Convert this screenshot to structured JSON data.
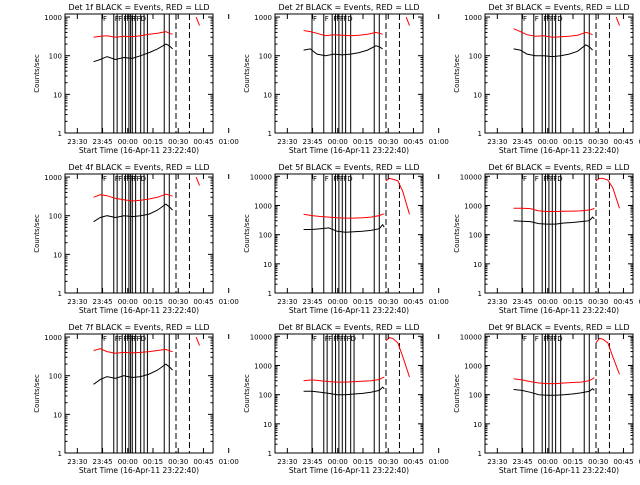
{
  "figure": {
    "background": "#ffffff",
    "event_color": "#000000",
    "lld_color": "#ff0000"
  },
  "chart_data": [
    {
      "type": "line",
      "title": "Det 1f BLACK = Events, RED = LLD",
      "xlabel": "Start Time (16-Apr-11 23:22:40)",
      "ylabel": "Counts/sec",
      "xticks": [
        "23:30",
        "23:45",
        "00:00",
        "00:15",
        "00:30",
        "00:45",
        "01:00"
      ],
      "yticks": [
        "1",
        "10",
        "100",
        "1000"
      ],
      "ylim": [
        1,
        1200
      ],
      "yscale": "log",
      "grid": false,
      "x_minutes": [
        17,
        21,
        25,
        30,
        35,
        40,
        45,
        50,
        55,
        60,
        62,
        64
      ],
      "series": [
        {
          "color": "#000000",
          "values": [
            70,
            80,
            95,
            80,
            90,
            85,
            100,
            120,
            150,
            200,
            180,
            150
          ]
        },
        {
          "color": "#ff0000",
          "values": [
            300,
            320,
            330,
            300,
            320,
            310,
            330,
            360,
            380,
            420,
            380,
            360
          ]
        },
        {
          "color": "#ff0000",
          "x_minutes": [
            78,
            80
          ],
          "values": [
            1000,
            600
          ]
        }
      ],
      "event_lines_min": [
        22,
        29,
        31,
        34,
        36,
        38,
        39,
        40,
        42,
        45,
        47,
        49,
        59,
        62
      ],
      "dash_lines_min": [
        66,
        74
      ],
      "markers": [
        "F",
        "F",
        "F",
        "F",
        "F",
        "F",
        "F",
        "F",
        "FD"
      ]
    },
    {
      "type": "line",
      "title": "Det 2f BLACK = Events, RED = LLD",
      "xlabel": "Start Time (16-Apr-11 23:22:40)",
      "ylabel": "Counts/sec",
      "xticks": [
        "23:30",
        "23:45",
        "00:00",
        "00:15",
        "00:30",
        "00:45",
        "01:00"
      ],
      "yticks": [
        "1",
        "10",
        "100",
        "1000"
      ],
      "ylim": [
        1,
        1200
      ],
      "yscale": "log",
      "grid": false,
      "x_minutes": [
        17,
        21,
        25,
        30,
        35,
        40,
        45,
        50,
        55,
        60,
        62,
        64
      ],
      "series": [
        {
          "color": "#000000",
          "values": [
            140,
            150,
            110,
            100,
            110,
            105,
            110,
            120,
            140,
            180,
            170,
            150
          ]
        },
        {
          "color": "#ff0000",
          "values": [
            450,
            420,
            380,
            330,
            350,
            340,
            330,
            340,
            360,
            400,
            380,
            360
          ]
        },
        {
          "color": "#ff0000",
          "x_minutes": [
            78,
            80
          ],
          "values": [
            1000,
            600
          ]
        }
      ],
      "event_lines_min": [
        22,
        29,
        34,
        36,
        38,
        40,
        42,
        45,
        59,
        62
      ],
      "dash_lines_min": [
        66,
        74
      ],
      "markers": [
        "F",
        "F",
        "F",
        "F",
        "F",
        "FD"
      ]
    },
    {
      "type": "line",
      "title": "Det 3f BLACK = Events, RED = LLD",
      "xlabel": "Start Time (16-Apr-11 23:22:40)",
      "ylabel": "Counts/sec",
      "xticks": [
        "23:30",
        "23:45",
        "00:00",
        "00:15",
        "00:30",
        "00:45",
        "01:00"
      ],
      "yticks": [
        "1",
        "10",
        "100",
        "1000"
      ],
      "ylim": [
        1,
        1200
      ],
      "yscale": "log",
      "grid": false,
      "x_minutes": [
        17,
        21,
        25,
        30,
        35,
        40,
        45,
        50,
        55,
        60,
        62,
        64
      ],
      "series": [
        {
          "color": "#000000",
          "values": [
            150,
            140,
            110,
            100,
            100,
            95,
            100,
            110,
            130,
            190,
            170,
            140
          ]
        },
        {
          "color": "#ff0000",
          "values": [
            500,
            420,
            350,
            320,
            330,
            300,
            310,
            320,
            340,
            400,
            380,
            350
          ]
        },
        {
          "color": "#ff0000",
          "x_minutes": [
            78,
            80
          ],
          "values": [
            1000,
            600
          ]
        }
      ],
      "event_lines_min": [
        22,
        29,
        34,
        36,
        38,
        40,
        42,
        45,
        59,
        62
      ],
      "dash_lines_min": [
        66,
        74
      ],
      "markers": [
        "F",
        "F",
        "F",
        "F",
        "F",
        "FD"
      ]
    },
    {
      "type": "line",
      "title": "Det 4f BLACK = Events, RED = LLD",
      "xlabel": "Start Time (16-Apr-11 23:22:40)",
      "ylabel": "Counts/sec",
      "xticks": [
        "23:30",
        "23:45",
        "00:00",
        "00:15",
        "00:30",
        "00:45",
        "01:00"
      ],
      "yticks": [
        "1",
        "10",
        "100",
        "1000"
      ],
      "ylim": [
        1,
        1200
      ],
      "yscale": "log",
      "grid": false,
      "x_minutes": [
        17,
        21,
        25,
        30,
        35,
        40,
        45,
        50,
        55,
        60,
        62,
        64
      ],
      "series": [
        {
          "color": "#000000",
          "values": [
            70,
            90,
            100,
            90,
            100,
            95,
            100,
            110,
            140,
            200,
            170,
            140
          ]
        },
        {
          "color": "#ff0000",
          "values": [
            300,
            350,
            330,
            280,
            260,
            240,
            250,
            270,
            300,
            360,
            340,
            320
          ]
        },
        {
          "color": "#ff0000",
          "x_minutes": [
            78,
            80
          ],
          "values": [
            1000,
            600
          ]
        }
      ],
      "event_lines_min": [
        22,
        29,
        31,
        34,
        36,
        38,
        39,
        40,
        42,
        45,
        47,
        49,
        59,
        62
      ],
      "dash_lines_min": [
        66,
        74
      ],
      "markers": [
        "F",
        "F",
        "F",
        "F",
        "F",
        "F",
        "F",
        "F",
        "FD"
      ]
    },
    {
      "type": "line",
      "title": "Det 5f BLACK = Events, RED = LLD",
      "xlabel": "Start Time (16-Apr-11 23:22:40)",
      "ylabel": "Counts/sec",
      "xticks": [
        "23:30",
        "23:45",
        "00:00",
        "00:15",
        "00:30",
        "00:45",
        "01:00"
      ],
      "yticks": [
        "1",
        "10",
        "100",
        "1000",
        "10000"
      ],
      "ylim": [
        1,
        12000
      ],
      "yscale": "log",
      "grid": false,
      "x_minutes": [
        17,
        22,
        27,
        32,
        37,
        42,
        47,
        52,
        57,
        62,
        64,
        65
      ],
      "series": [
        {
          "color": "#000000",
          "values": [
            150,
            150,
            160,
            170,
            130,
            120,
            125,
            130,
            140,
            160,
            220,
            180
          ]
        },
        {
          "color": "#ff0000",
          "values": [
            500,
            450,
            420,
            400,
            380,
            370,
            370,
            380,
            400,
            450,
            500,
            520
          ]
        },
        {
          "color": "#ff0000",
          "x_minutes": [
            66,
            68,
            70,
            73,
            76,
            80
          ],
          "values": [
            7000,
            8500,
            8000,
            7000,
            3000,
            500
          ]
        }
      ],
      "event_lines_min": [
        22,
        29,
        34,
        36,
        38,
        40,
        42,
        45,
        59,
        62
      ],
      "dash_lines_min": [
        66,
        74
      ],
      "markers": [
        "F",
        "F",
        "F",
        "F",
        "F",
        "FD"
      ]
    },
    {
      "type": "line",
      "title": "Det 6f BLACK = Events, RED = LLD",
      "xlabel": "Start Time (16-Apr-11 23:22:40)",
      "ylabel": "Counts/sec",
      "xticks": [
        "23:30",
        "23:45",
        "00:00",
        "00:15",
        "00:30",
        "00:45",
        "01:00"
      ],
      "yticks": [
        "1",
        "10",
        "100",
        "1000",
        "10000"
      ],
      "ylim": [
        1,
        12000
      ],
      "yscale": "log",
      "grid": false,
      "x_minutes": [
        17,
        22,
        27,
        32,
        37,
        42,
        47,
        52,
        57,
        62,
        64,
        65
      ],
      "series": [
        {
          "color": "#000000",
          "values": [
            300,
            290,
            280,
            240,
            230,
            230,
            250,
            260,
            280,
            300,
            400,
            350
          ]
        },
        {
          "color": "#ff0000",
          "values": [
            800,
            800,
            780,
            650,
            620,
            620,
            630,
            640,
            650,
            700,
            750,
            800
          ]
        },
        {
          "color": "#ff0000",
          "x_minutes": [
            66,
            68,
            70,
            73,
            76,
            80
          ],
          "values": [
            7000,
            8500,
            8500,
            7500,
            4000,
            800
          ]
        }
      ],
      "event_lines_min": [
        22,
        29,
        34,
        36,
        38,
        40,
        42,
        45,
        59,
        62
      ],
      "dash_lines_min": [
        66,
        74
      ],
      "markers": [
        "F",
        "F",
        "F",
        "F",
        "F",
        "FD"
      ]
    },
    {
      "type": "line",
      "title": "Det 7f BLACK = Events, RED = LLD",
      "xlabel": "Start Time (16-Apr-11 23:22:40)",
      "ylabel": "Counts/sec",
      "xticks": [
        "23:30",
        "23:45",
        "00:00",
        "00:15",
        "00:30",
        "00:45",
        "01:00"
      ],
      "yticks": [
        "1",
        "10",
        "100",
        "1000"
      ],
      "ylim": [
        1,
        1200
      ],
      "yscale": "log",
      "grid": false,
      "x_minutes": [
        17,
        21,
        25,
        30,
        35,
        40,
        45,
        50,
        55,
        60,
        62,
        64
      ],
      "series": [
        {
          "color": "#000000",
          "values": [
            60,
            80,
            95,
            85,
            100,
            90,
            95,
            110,
            140,
            200,
            170,
            140
          ]
        },
        {
          "color": "#ff0000",
          "values": [
            450,
            500,
            420,
            380,
            400,
            390,
            400,
            420,
            450,
            480,
            440,
            420
          ]
        },
        {
          "color": "#ff0000",
          "x_minutes": [
            78,
            80
          ],
          "values": [
            1000,
            600
          ]
        }
      ],
      "event_lines_min": [
        22,
        29,
        31,
        34,
        36,
        38,
        39,
        40,
        42,
        45,
        47,
        49,
        59,
        62
      ],
      "dash_lines_min": [
        66,
        74
      ],
      "markers": [
        "F",
        "F",
        "F",
        "F",
        "F",
        "F",
        "F",
        "F",
        "FD"
      ]
    },
    {
      "type": "line",
      "title": "Det 8f BLACK = Events, RED = LLD",
      "xlabel": "Start Time (16-Apr-11 23:22:40)",
      "ylabel": "Counts/sec",
      "xticks": [
        "23:30",
        "23:45",
        "00:00",
        "00:15",
        "00:30",
        "00:45",
        "01:00"
      ],
      "yticks": [
        "1",
        "10",
        "100",
        "1000",
        "10000"
      ],
      "ylim": [
        1,
        12000
      ],
      "yscale": "log",
      "grid": false,
      "x_minutes": [
        17,
        22,
        27,
        32,
        37,
        42,
        47,
        52,
        57,
        62,
        64,
        65
      ],
      "series": [
        {
          "color": "#000000",
          "values": [
            130,
            130,
            120,
            110,
            100,
            100,
            105,
            110,
            120,
            140,
            180,
            160
          ]
        },
        {
          "color": "#ff0000",
          "values": [
            300,
            320,
            300,
            280,
            270,
            270,
            280,
            290,
            300,
            330,
            380,
            400
          ]
        },
        {
          "color": "#ff0000",
          "x_minutes": [
            66,
            68,
            70,
            73,
            76,
            80
          ],
          "values": [
            7000,
            9000,
            8500,
            6000,
            2000,
            400
          ]
        }
      ],
      "event_lines_min": [
        22,
        29,
        31,
        34,
        36,
        38,
        40,
        42,
        45,
        47,
        59,
        62
      ],
      "dash_lines_min": [
        66,
        74
      ],
      "markers": [
        "F",
        "F",
        "F",
        "F",
        "F",
        "F",
        "F",
        "FD"
      ]
    },
    {
      "type": "line",
      "title": "Det 9f BLACK = Events, RED = LLD",
      "xlabel": "Start Time (16-Apr-11 23:22:40)",
      "ylabel": "Counts/sec",
      "xticks": [
        "23:30",
        "23:45",
        "00:00",
        "00:15",
        "00:30",
        "00:45",
        "01:00"
      ],
      "yticks": [
        "1",
        "10",
        "100",
        "1000",
        "10000"
      ],
      "ylim": [
        1,
        12000
      ],
      "yscale": "log",
      "grid": false,
      "x_minutes": [
        17,
        22,
        27,
        32,
        37,
        42,
        47,
        52,
        57,
        62,
        64,
        65
      ],
      "series": [
        {
          "color": "#000000",
          "values": [
            150,
            140,
            120,
            100,
            95,
            95,
            100,
            105,
            115,
            130,
            160,
            140
          ]
        },
        {
          "color": "#ff0000",
          "values": [
            350,
            320,
            280,
            250,
            240,
            240,
            250,
            260,
            270,
            300,
            350,
            380
          ]
        },
        {
          "color": "#ff0000",
          "x_minutes": [
            66,
            68,
            70,
            73,
            76,
            80
          ],
          "values": [
            6000,
            8500,
            8000,
            6000,
            2000,
            500
          ]
        }
      ],
      "event_lines_min": [
        22,
        29,
        34,
        36,
        38,
        40,
        42,
        45,
        59,
        62
      ],
      "dash_lines_min": [
        66,
        74
      ],
      "markers": [
        "F",
        "F",
        "F",
        "F",
        "F",
        "FD"
      ]
    }
  ]
}
